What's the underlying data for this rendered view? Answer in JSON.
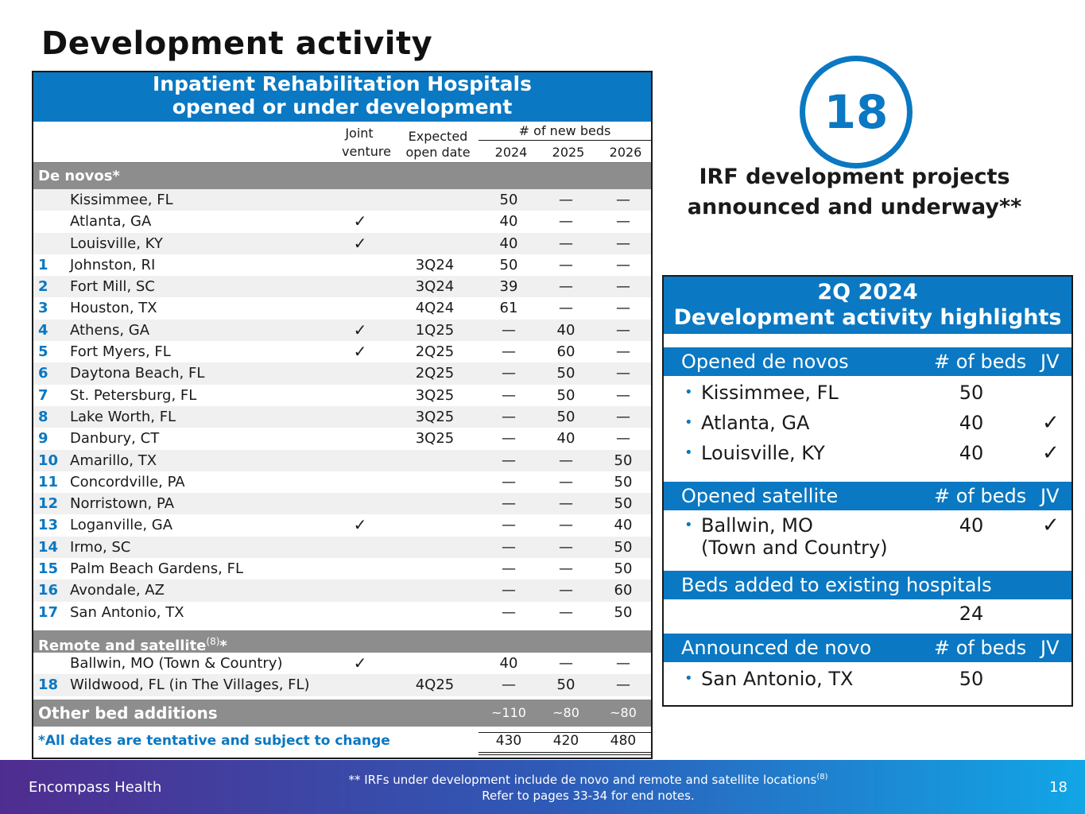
{
  "title": "Development activity",
  "irf_table": {
    "header_line1": "Inpatient Rehabilitation Hospitals",
    "header_line2": "opened or under development",
    "col_joint_line1": "Joint",
    "col_joint_line2": "venture",
    "col_open_line1": "Expected",
    "col_open_line2": "open date",
    "col_beds": "# of new beds",
    "years": [
      "2024",
      "2025",
      "2026"
    ],
    "section_denovos": "De novos*",
    "denovos": [
      {
        "num": "",
        "loc": "Kissimmee, FL",
        "jv": false,
        "od": "",
        "v2024": "50",
        "v2025": "—",
        "v2026": "—"
      },
      {
        "num": "",
        "loc": "Atlanta, GA",
        "jv": true,
        "od": "",
        "v2024": "40",
        "v2025": "—",
        "v2026": "—"
      },
      {
        "num": "",
        "loc": "Louisville, KY",
        "jv": true,
        "od": "",
        "v2024": "40",
        "v2025": "—",
        "v2026": "—"
      },
      {
        "num": "1",
        "loc": "Johnston, RI",
        "jv": false,
        "od": "3Q24",
        "v2024": "50",
        "v2025": "—",
        "v2026": "—"
      },
      {
        "num": "2",
        "loc": "Fort Mill, SC",
        "jv": false,
        "od": "3Q24",
        "v2024": "39",
        "v2025": "—",
        "v2026": "—"
      },
      {
        "num": "3",
        "loc": "Houston, TX",
        "jv": false,
        "od": "4Q24",
        "v2024": "61",
        "v2025": "—",
        "v2026": "—"
      },
      {
        "num": "4",
        "loc": "Athens, GA",
        "jv": true,
        "od": "1Q25",
        "v2024": "—",
        "v2025": "40",
        "v2026": "—"
      },
      {
        "num": "5",
        "loc": "Fort Myers, FL",
        "jv": true,
        "od": "2Q25",
        "v2024": "—",
        "v2025": "60",
        "v2026": "—"
      },
      {
        "num": "6",
        "loc": "Daytona Beach, FL",
        "jv": false,
        "od": "2Q25",
        "v2024": "—",
        "v2025": "50",
        "v2026": "—"
      },
      {
        "num": "7",
        "loc": "St. Petersburg, FL",
        "jv": false,
        "od": "3Q25",
        "v2024": "—",
        "v2025": "50",
        "v2026": "—"
      },
      {
        "num": "8",
        "loc": "Lake Worth, FL",
        "jv": false,
        "od": "3Q25",
        "v2024": "—",
        "v2025": "50",
        "v2026": "—"
      },
      {
        "num": "9",
        "loc": "Danbury, CT",
        "jv": false,
        "od": "3Q25",
        "v2024": "—",
        "v2025": "40",
        "v2026": "—"
      },
      {
        "num": "10",
        "loc": "Amarillo, TX",
        "jv": false,
        "od": "",
        "v2024": "—",
        "v2025": "—",
        "v2026": "50"
      },
      {
        "num": "11",
        "loc": "Concordville, PA",
        "jv": false,
        "od": "",
        "v2024": "—",
        "v2025": "—",
        "v2026": "50"
      },
      {
        "num": "12",
        "loc": "Norristown, PA",
        "jv": false,
        "od": "",
        "v2024": "—",
        "v2025": "—",
        "v2026": "50"
      },
      {
        "num": "13",
        "loc": "Loganville, GA",
        "jv": true,
        "od": "",
        "v2024": "—",
        "v2025": "—",
        "v2026": "40"
      },
      {
        "num": "14",
        "loc": "Irmo, SC",
        "jv": false,
        "od": "",
        "v2024": "—",
        "v2025": "—",
        "v2026": "50"
      },
      {
        "num": "15",
        "loc": "Palm Beach Gardens, FL",
        "jv": false,
        "od": "",
        "v2024": "—",
        "v2025": "—",
        "v2026": "50"
      },
      {
        "num": "16",
        "loc": "Avondale, AZ",
        "jv": false,
        "od": "",
        "v2024": "—",
        "v2025": "—",
        "v2026": "60"
      },
      {
        "num": "17",
        "loc": "San Antonio, TX",
        "jv": false,
        "od": "",
        "v2024": "—",
        "v2025": "—",
        "v2026": "50"
      }
    ],
    "section_remote": "Remote and satellite",
    "section_remote_sup": "(8)",
    "section_remote_suffix": "*",
    "remote": [
      {
        "num": "",
        "loc": "Ballwin, MO (Town & Country)",
        "jv": true,
        "od": "",
        "v2024": "40",
        "v2025": "—",
        "v2026": "—"
      },
      {
        "num": "18",
        "loc": "Wildwood, FL (in The Villages, FL)",
        "jv": false,
        "od": "4Q25",
        "v2024": "—",
        "v2025": "50",
        "v2026": "—"
      }
    ],
    "other_label": "Other bed additions",
    "other": {
      "v2024": "~110",
      "v2025": "~80",
      "v2026": "~80"
    },
    "footnote": "*All dates are tentative and subject to change",
    "totals": {
      "v2024": "430",
      "v2025": "420",
      "v2026": "480"
    },
    "check_glyph": "✓"
  },
  "stat": {
    "number": "18",
    "caption_line1": "IRF development projects",
    "caption_line2": "announced and underway**"
  },
  "highlights": {
    "header_line1": "2Q 2024",
    "header_line2": "Development activity highlights",
    "beds_label": "# of beds",
    "jv_label": "JV",
    "opened_denovos": "Opened de novos",
    "opened_items": [
      {
        "loc": "Kissimmee, FL",
        "beds": "50",
        "jv": ""
      },
      {
        "loc": "Atlanta, GA",
        "beds": "40",
        "jv": "✓"
      },
      {
        "loc": "Louisville, KY",
        "beds": "40",
        "jv": "✓"
      }
    ],
    "opened_satellite": "Opened satellite",
    "satellite_loc_line1": "Ballwin, MO",
    "satellite_loc_line2": "(Town and Country)",
    "satellite_beds": "40",
    "satellite_jv": "✓",
    "beds_added": "Beds added to existing hospitals",
    "beds_added_value": "24",
    "announced": "Announced de novo",
    "announced_loc": "San Antonio, TX",
    "announced_beds": "50",
    "bullet": "•"
  },
  "footer": {
    "brand": "Encompass Health",
    "note_line1": "** IRFs under development include de novo and remote and satellite locations",
    "note_line1_sup": "(8)",
    "note_line2": "Refer to pages 33-34 for end notes.",
    "page": "18"
  },
  "colors": {
    "accent": "#0a78c2",
    "section_gray": "#8d8d8d",
    "row_shade": "#f0f0f0"
  }
}
